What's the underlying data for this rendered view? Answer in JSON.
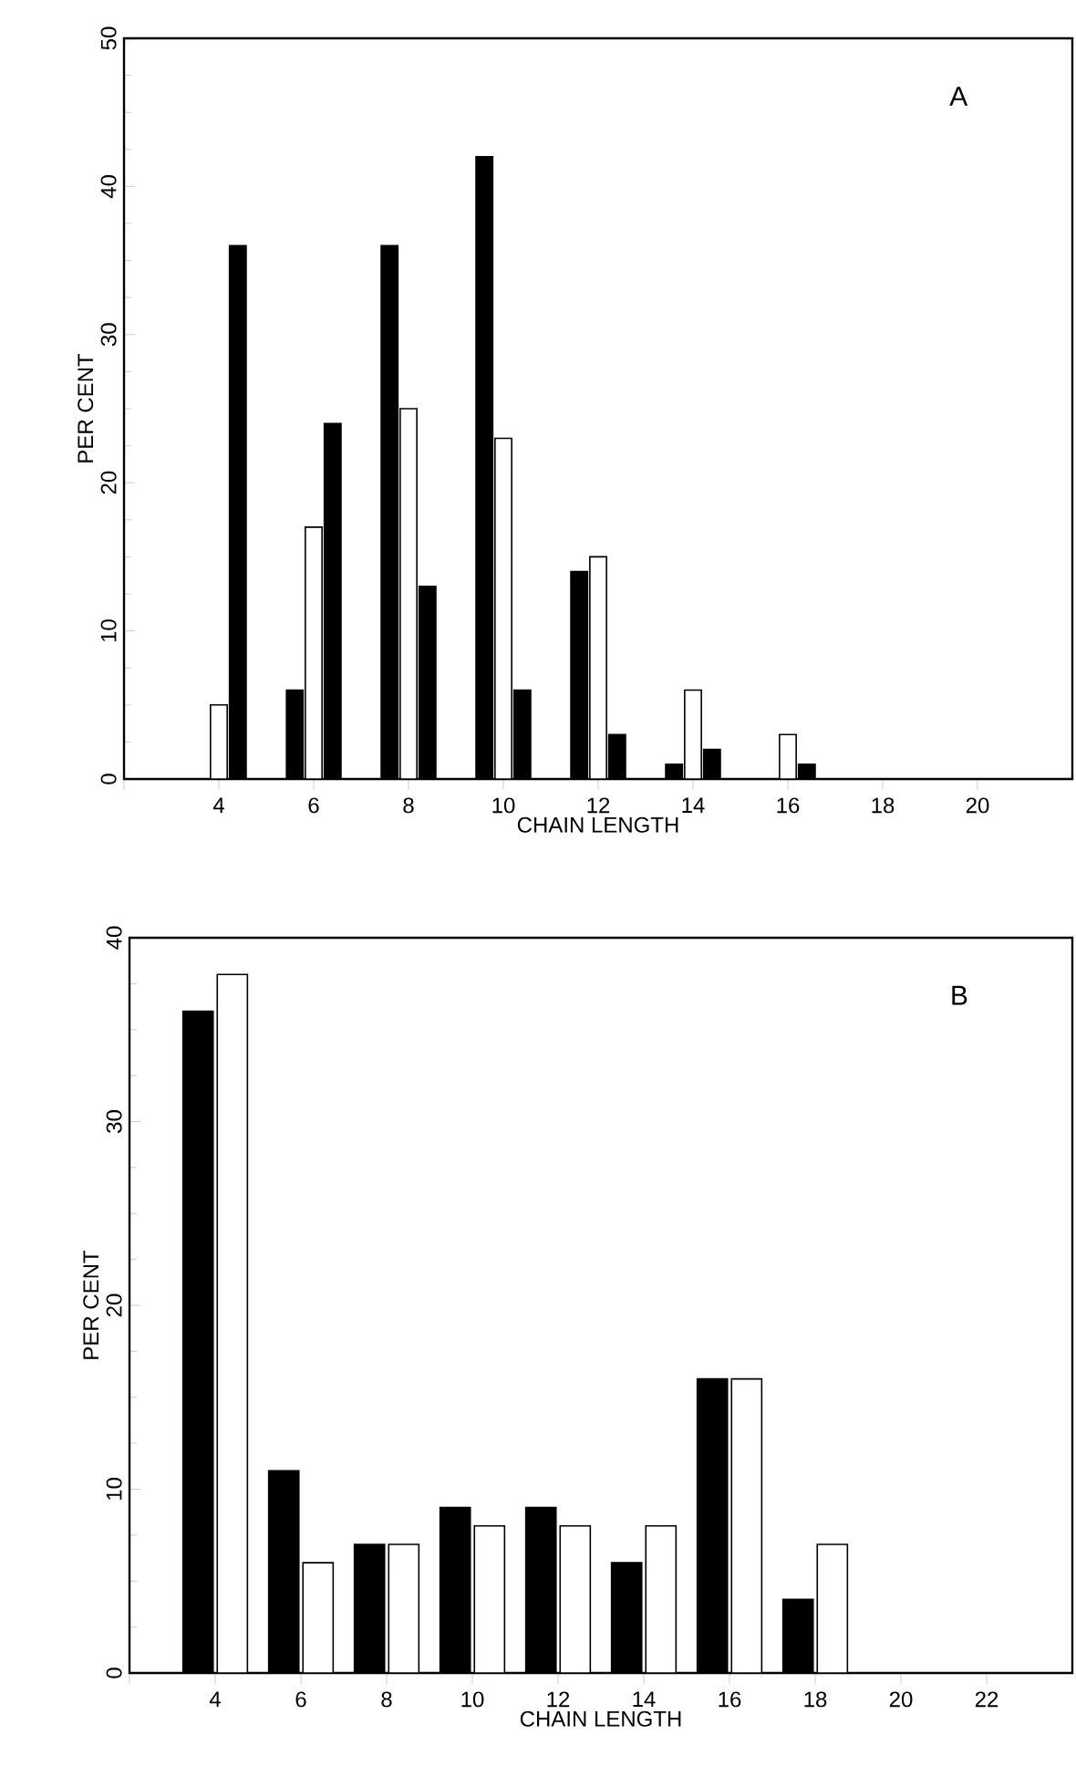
{
  "chart_data": [
    {
      "type": "bar",
      "title": "A",
      "xlabel": "CHAIN LENGTH",
      "ylabel": "PER CENT",
      "x": [
        4,
        6,
        8,
        10,
        12,
        14,
        16
      ],
      "series": [
        {
          "color": "#000000",
          "values": [
            null,
            6,
            36,
            42,
            14,
            1,
            null
          ]
        },
        {
          "color": "#ffffff",
          "values": [
            5,
            17,
            25,
            23,
            15,
            6,
            3
          ]
        },
        {
          "color": "#000000",
          "values": [
            36,
            24,
            13,
            6,
            3,
            2,
            1
          ]
        }
      ],
      "xlim": [
        2,
        22
      ],
      "ylim": [
        0,
        50
      ],
      "xticks": [
        {
          "value": 2,
          "label": null
        },
        4,
        6,
        8,
        10,
        12,
        14,
        16,
        18,
        20
      ],
      "yticks": [
        0,
        10,
        20,
        30,
        40,
        50
      ]
    },
    {
      "type": "bar",
      "title": "B",
      "xlabel": "CHAIN LENGTH",
      "ylabel": "PER CENT",
      "x": [
        4,
        6,
        8,
        10,
        12,
        14,
        16,
        18
      ],
      "series": [
        {
          "color": "#000000",
          "values": [
            36,
            11,
            7,
            9,
            9,
            6,
            16,
            4
          ]
        },
        {
          "color": "#ffffff",
          "values": [
            38,
            6,
            7,
            8,
            8,
            8,
            16,
            7
          ]
        }
      ],
      "xlim": [
        2,
        24
      ],
      "ylim": [
        0,
        40
      ],
      "xticks": [
        {
          "value": 2,
          "label": null
        },
        4,
        6,
        8,
        10,
        12,
        14,
        16,
        18,
        20,
        22
      ],
      "yticks": [
        0,
        10,
        20,
        30,
        40
      ]
    }
  ]
}
